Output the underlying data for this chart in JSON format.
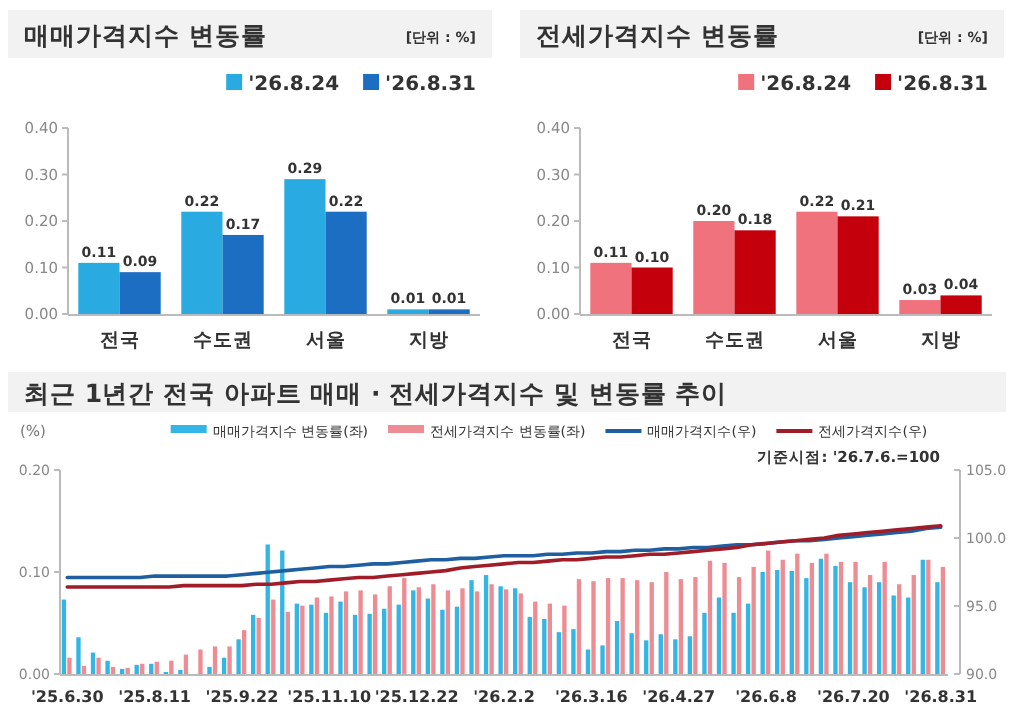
{
  "chart_data": [
    {
      "type": "bar",
      "title": "매매가격지수 변동률",
      "annotations": [
        "[단위 : %]"
      ],
      "categories": [
        "전국",
        "수도권",
        "서울",
        "지방"
      ],
      "series": [
        {
          "name": "'26.8.24",
          "color": "#29abe2",
          "values": [
            0.11,
            0.22,
            0.29,
            0.01
          ],
          "value_labels": [
            "0.11",
            "0.22",
            "0.29",
            "0.01"
          ]
        },
        {
          "name": "'26.8.31",
          "color": "#1b6ec2",
          "values": [
            0.09,
            0.17,
            0.22,
            0.01
          ],
          "value_labels": [
            "0.09",
            "0.17",
            "0.22",
            "0.01"
          ]
        }
      ],
      "ylim": [
        0,
        0.4
      ],
      "yticks": [
        {
          "value": 0,
          "label": "0.00"
        },
        {
          "value": 0.1,
          "label": "0.10"
        },
        {
          "value": 0.2,
          "label": "0.20"
        },
        {
          "value": 0.3,
          "label": "0.30"
        },
        {
          "value": 0.4,
          "label": "0.40"
        }
      ],
      "legend": "top right"
    },
    {
      "type": "bar",
      "title": "전세가격지수 변동률",
      "annotations": [
        "[단위 : %]"
      ],
      "categories": [
        "전국",
        "수도권",
        "서울",
        "지방"
      ],
      "series": [
        {
          "name": "'26.8.24",
          "color": "#f0727c",
          "values": [
            0.11,
            0.2,
            0.22,
            0.03
          ],
          "value_labels": [
            "0.11",
            "0.20",
            "0.22",
            "0.03"
          ]
        },
        {
          "name": "'26.8.31",
          "color": "#c4000c",
          "values": [
            0.1,
            0.18,
            0.21,
            0.04
          ],
          "value_labels": [
            "0.10",
            "0.18",
            "0.21",
            "0.04"
          ]
        }
      ],
      "ylim": [
        0,
        0.4
      ],
      "yticks": [
        {
          "value": 0,
          "label": "0.00"
        },
        {
          "value": 0.1,
          "label": "0.10"
        },
        {
          "value": 0.2,
          "label": "0.20"
        },
        {
          "value": 0.3,
          "label": "0.30"
        },
        {
          "value": 0.4,
          "label": "0.40"
        }
      ],
      "legend": "top right"
    },
    {
      "type": "bar",
      "title": "최근 1년간 전국 아파트 매매 · 전세가격지수 및 변동률 추이",
      "ylabel": "(%)",
      "annotations": [
        "기준시점: '26.7.6.=100"
      ],
      "categories": [
        "'25.6.30",
        null,
        null,
        null,
        null,
        null,
        "'25.8.11",
        null,
        null,
        null,
        null,
        null,
        "'25.9.22",
        null,
        null,
        null,
        null,
        null,
        "'25.11.10",
        null,
        null,
        null,
        null,
        null,
        "'25.12.22",
        null,
        null,
        null,
        null,
        null,
        "'26.2.2",
        null,
        null,
        null,
        null,
        null,
        "'26.3.16",
        null,
        null,
        null,
        null,
        null,
        "'26.4.27",
        null,
        null,
        null,
        null,
        null,
        "'26.6.8",
        null,
        null,
        null,
        null,
        null,
        "'26.7.20",
        null,
        null,
        null,
        null,
        null,
        "'26.8.31"
      ],
      "series": [
        {
          "name": "매매가격지수 변동률(좌)",
          "color": "#33b5e5",
          "values": [
            0.073,
            0.036,
            0.021,
            0.013,
            0.005,
            0.009,
            0.01,
            0.002,
            0.004,
            0.0,
            0.007,
            0.016,
            0.034,
            0.058,
            0.127,
            0.121,
            0.069,
            0.068,
            0.06,
            0.071,
            0.058,
            0.059,
            0.064,
            0.068,
            0.082,
            0.074,
            0.063,
            0.066,
            0.092,
            0.097,
            0.086,
            0.084,
            0.056,
            0.054,
            0.041,
            0.044,
            0.024,
            0.028,
            0.052,
            0.04,
            0.033,
            0.039,
            0.034,
            0.037,
            0.06,
            0.075,
            0.06,
            0.069,
            0.1,
            0.102,
            0.101,
            0.094,
            0.113,
            0.106,
            0.09,
            0.085,
            0.09,
            0.077,
            0.075,
            0.112,
            0.09
          ]
        },
        {
          "name": "전세가격지수 변동률(좌)",
          "color": "#ee8c94",
          "values": [
            0.016,
            0.008,
            0.016,
            0.007,
            0.006,
            0.01,
            0.012,
            0.013,
            0.019,
            0.024,
            0.027,
            0.027,
            0.043,
            0.055,
            0.073,
            0.061,
            0.067,
            0.075,
            0.076,
            0.081,
            0.082,
            0.078,
            0.086,
            0.094,
            0.085,
            0.088,
            0.082,
            0.084,
            0.081,
            0.088,
            0.083,
            0.079,
            0.071,
            0.069,
            0.067,
            0.093,
            0.091,
            0.094,
            0.094,
            0.092,
            0.09,
            0.1,
            0.093,
            0.095,
            0.111,
            0.109,
            0.095,
            0.105,
            0.121,
            0.112,
            0.118,
            0.109,
            0.118,
            0.11,
            0.11,
            0.097,
            0.11,
            0.088,
            0.097,
            0.112,
            0.105
          ]
        },
        {
          "name": "매매가격지수(우)",
          "type": "line",
          "axis": "y2",
          "color": "#1f5f9f",
          "values": [
            97.1,
            97.1,
            97.1,
            97.1,
            97.1,
            97.1,
            97.2,
            97.2,
            97.2,
            97.2,
            97.2,
            97.2,
            97.3,
            97.4,
            97.5,
            97.6,
            97.7,
            97.8,
            97.9,
            97.9,
            98.0,
            98.1,
            98.1,
            98.2,
            98.3,
            98.4,
            98.4,
            98.5,
            98.5,
            98.6,
            98.7,
            98.7,
            98.7,
            98.8,
            98.8,
            98.9,
            98.9,
            99.0,
            99.0,
            99.1,
            99.1,
            99.2,
            99.2,
            99.3,
            99.3,
            99.4,
            99.5,
            99.5,
            99.6,
            99.7,
            99.8,
            99.8,
            99.9,
            100.0,
            100.1,
            100.2,
            100.3,
            100.4,
            100.5,
            100.7,
            100.8
          ]
        },
        {
          "name": "전세가격지수(우)",
          "type": "line",
          "axis": "y2",
          "color": "#a01c28",
          "values": [
            96.4,
            96.4,
            96.4,
            96.4,
            96.4,
            96.4,
            96.4,
            96.4,
            96.5,
            96.5,
            96.5,
            96.5,
            96.5,
            96.6,
            96.6,
            96.7,
            96.8,
            96.8,
            96.9,
            97.0,
            97.1,
            97.1,
            97.2,
            97.3,
            97.4,
            97.5,
            97.6,
            97.8,
            97.9,
            98.0,
            98.1,
            98.2,
            98.2,
            98.3,
            98.4,
            98.4,
            98.5,
            98.6,
            98.6,
            98.7,
            98.8,
            98.8,
            98.9,
            99.0,
            99.1,
            99.2,
            99.3,
            99.5,
            99.6,
            99.7,
            99.8,
            99.9,
            100.0,
            100.2,
            100.3,
            100.4,
            100.5,
            100.6,
            100.7,
            100.8,
            100.9
          ]
        }
      ],
      "ylim": [
        0,
        0.2
      ],
      "yticks": [
        {
          "value": 0,
          "label": "0.00"
        },
        {
          "value": 0.1,
          "label": "0.10"
        },
        {
          "value": 0.2,
          "label": "0.20"
        }
      ],
      "y2lim": [
        90,
        105
      ],
      "y2ticks": [
        {
          "value": 90,
          "label": "90.0"
        },
        {
          "value": 95,
          "label": "95.0"
        },
        {
          "value": 100,
          "label": "100.0"
        },
        {
          "value": 105,
          "label": "105.0"
        }
      ],
      "legend": "top"
    }
  ]
}
